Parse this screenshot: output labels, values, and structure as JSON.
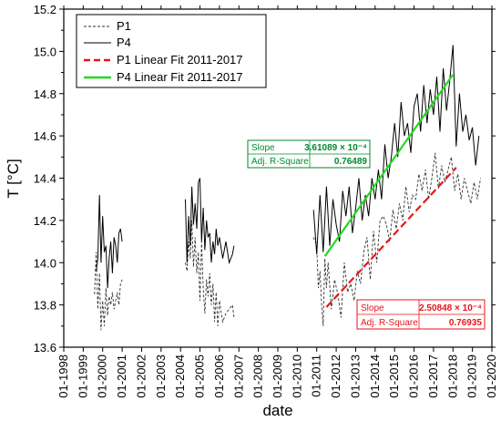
{
  "chart_data": {
    "type": "line",
    "xlabel": "date",
    "ylabel": "T [°C]",
    "xlim": [
      "1998-01",
      "2020-01"
    ],
    "ylim": [
      13.6,
      15.2
    ],
    "x_ticks": [
      "01-1998",
      "01-1999",
      "01-2000",
      "01-2001",
      "01-2002",
      "01-2003",
      "01-2004",
      "01-2005",
      "01-2006",
      "01-2007",
      "01-2008",
      "01-2009",
      "01-2010",
      "01-2011",
      "01-2012",
      "01-2013",
      "01-2014",
      "01-2015",
      "01-2016",
      "01-2017",
      "01-2018",
      "01-2019",
      "01-2020"
    ],
    "y_ticks": [
      "13.6",
      "13.8",
      "14.0",
      "14.2",
      "14.4",
      "14.6",
      "14.8",
      "15.0",
      "15.2"
    ],
    "legend_position": "top-left",
    "series": [
      {
        "name": "P1",
        "style": "dashed",
        "color": "#333333",
        "segments": [
          [
            [
              "1999-08",
              13.85
            ],
            [
              "1999-09",
              14.05
            ],
            [
              "1999-10",
              13.78
            ],
            [
              "1999-11",
              13.95
            ],
            [
              "1999-12",
              13.68
            ],
            [
              "2000-01",
              13.82
            ],
            [
              "2000-02",
              13.7
            ],
            [
              "2000-03",
              13.88
            ],
            [
              "2000-04",
              13.75
            ],
            [
              "2000-05",
              13.84
            ],
            [
              "2000-06",
              13.8
            ],
            [
              "2000-07",
              13.86
            ],
            [
              "2000-08",
              13.78
            ],
            [
              "2000-09",
              13.82
            ],
            [
              "2000-10",
              13.86
            ],
            [
              "2000-11",
              13.8
            ],
            [
              "2000-12",
              13.9
            ],
            [
              "2001-01",
              13.92
            ]
          ],
          [
            [
              "2004-04",
              14.0
            ],
            [
              "2004-05",
              13.96
            ],
            [
              "2004-06",
              14.1
            ],
            [
              "2004-07",
              14.02
            ],
            [
              "2004-08",
              14.2
            ],
            [
              "2004-09",
              13.98
            ],
            [
              "2004-10",
              14.12
            ],
            [
              "2004-11",
              13.95
            ],
            [
              "2004-12",
              14.05
            ],
            [
              "2005-01",
              13.82
            ],
            [
              "2005-02",
              14.1
            ],
            [
              "2005-03",
              13.88
            ],
            [
              "2005-04",
              13.76
            ],
            [
              "2005-05",
              13.92
            ],
            [
              "2005-06",
              13.84
            ],
            [
              "2005-07",
              13.95
            ],
            [
              "2005-08",
              13.8
            ],
            [
              "2005-09",
              13.9
            ],
            [
              "2005-10",
              13.72
            ],
            [
              "2005-11",
              13.86
            ],
            [
              "2005-12",
              13.7
            ],
            [
              "2006-01",
              13.82
            ],
            [
              "2006-03",
              13.72
            ],
            [
              "2006-05",
              13.76
            ],
            [
              "2006-07",
              13.78
            ],
            [
              "2006-09",
              13.8
            ],
            [
              "2006-10",
              13.74
            ]
          ],
          [
            [
              "2010-11",
              14.12
            ],
            [
              "2011-01",
              14.08
            ],
            [
              "2011-02",
              13.88
            ],
            [
              "2011-03",
              13.96
            ],
            [
              "2011-04",
              13.8
            ],
            [
              "2011-05",
              13.7
            ],
            [
              "2011-06",
              14.02
            ],
            [
              "2011-07",
              13.88
            ],
            [
              "2011-08",
              14.0
            ],
            [
              "2011-10",
              13.78
            ],
            [
              "2011-12",
              13.92
            ],
            [
              "2012-02",
              13.85
            ],
            [
              "2012-04",
              13.74
            ],
            [
              "2012-06",
              14.0
            ],
            [
              "2012-08",
              13.86
            ],
            [
              "2012-10",
              13.9
            ],
            [
              "2012-12",
              13.82
            ],
            [
              "2013-02",
              13.96
            ],
            [
              "2013-04",
              13.9
            ],
            [
              "2013-06",
              14.05
            ],
            [
              "2013-08",
              14.12
            ],
            [
              "2013-10",
              13.92
            ],
            [
              "2013-12",
              14.15
            ],
            [
              "2014-02",
              14.0
            ],
            [
              "2014-04",
              14.2
            ],
            [
              "2014-06",
              14.22
            ],
            [
              "2014-08",
              14.18
            ],
            [
              "2014-10",
              14.1
            ],
            [
              "2014-12",
              14.25
            ],
            [
              "2015-02",
              14.16
            ],
            [
              "2015-04",
              14.28
            ],
            [
              "2015-06",
              14.2
            ],
            [
              "2015-08",
              14.36
            ],
            [
              "2015-10",
              14.24
            ],
            [
              "2015-12",
              14.32
            ],
            [
              "2016-02",
              14.3
            ],
            [
              "2016-04",
              14.42
            ],
            [
              "2016-06",
              14.34
            ],
            [
              "2016-08",
              14.44
            ],
            [
              "2016-10",
              14.3
            ],
            [
              "2016-12",
              14.4
            ],
            [
              "2017-02",
              14.52
            ],
            [
              "2017-04",
              14.35
            ],
            [
              "2017-06",
              14.46
            ],
            [
              "2017-08",
              14.38
            ],
            [
              "2017-10",
              14.44
            ],
            [
              "2017-12",
              14.5
            ],
            [
              "2018-02",
              14.34
            ],
            [
              "2018-04",
              14.42
            ],
            [
              "2018-06",
              14.3
            ],
            [
              "2018-08",
              14.4
            ],
            [
              "2018-10",
              14.34
            ],
            [
              "2018-12",
              14.28
            ],
            [
              "2019-02",
              14.38
            ],
            [
              "2019-04",
              14.3
            ],
            [
              "2019-06",
              14.4
            ]
          ]
        ]
      },
      {
        "name": "P4",
        "style": "solid",
        "color": "#000000",
        "segments": [
          [
            [
              "1999-09",
              13.96
            ],
            [
              "1999-10",
              14.02
            ],
            [
              "1999-11",
              14.32
            ],
            [
              "1999-12",
              14.0
            ],
            [
              "2000-01",
              14.22
            ],
            [
              "2000-02",
              14.05
            ],
            [
              "2000-03",
              14.08
            ],
            [
              "2000-04",
              13.88
            ],
            [
              "2000-05",
              14.02
            ],
            [
              "2000-06",
              14.1
            ],
            [
              "2000-07",
              13.95
            ],
            [
              "2000-08",
              14.12
            ],
            [
              "2000-09",
              14.08
            ],
            [
              "2000-10",
              14.0
            ],
            [
              "2000-11",
              14.14
            ],
            [
              "2000-12",
              14.16
            ],
            [
              "2001-01",
              14.1
            ]
          ],
          [
            [
              "2004-04",
              14.3
            ],
            [
              "2004-05",
              14.0
            ],
            [
              "2004-06",
              14.22
            ],
            [
              "2004-07",
              14.08
            ],
            [
              "2004-08",
              14.36
            ],
            [
              "2004-09",
              14.18
            ],
            [
              "2004-10",
              14.28
            ],
            [
              "2004-11",
              14.16
            ],
            [
              "2004-12",
              14.38
            ],
            [
              "2005-01",
              14.4
            ],
            [
              "2005-02",
              14.1
            ],
            [
              "2005-03",
              14.26
            ],
            [
              "2005-04",
              14.06
            ],
            [
              "2005-05",
              14.2
            ],
            [
              "2005-06",
              14.12
            ],
            [
              "2005-07",
              14.14
            ],
            [
              "2005-08",
              14.0
            ],
            [
              "2005-09",
              14.1
            ],
            [
              "2005-10",
              14.04
            ],
            [
              "2005-11",
              14.16
            ],
            [
              "2005-12",
              14.08
            ],
            [
              "2006-01",
              14.12
            ],
            [
              "2006-03",
              14.02
            ],
            [
              "2006-05",
              14.1
            ],
            [
              "2006-07",
              14.0
            ],
            [
              "2006-09",
              14.04
            ],
            [
              "2006-10",
              14.08
            ]
          ],
          [
            [
              "2010-11",
              14.25
            ],
            [
              "2011-01",
              14.04
            ],
            [
              "2011-03",
              14.32
            ],
            [
              "2011-05",
              14.05
            ],
            [
              "2011-07",
              14.36
            ],
            [
              "2011-09",
              14.08
            ],
            [
              "2011-11",
              14.3
            ],
            [
              "2012-01",
              14.18
            ],
            [
              "2012-03",
              14.1
            ],
            [
              "2012-05",
              14.34
            ],
            [
              "2012-07",
              14.22
            ],
            [
              "2012-09",
              14.36
            ],
            [
              "2012-11",
              14.14
            ],
            [
              "2013-01",
              14.26
            ],
            [
              "2013-03",
              14.4
            ],
            [
              "2013-05",
              14.2
            ],
            [
              "2013-07",
              14.32
            ],
            [
              "2013-09",
              14.22
            ],
            [
              "2013-11",
              14.4
            ],
            [
              "2014-01",
              14.3
            ],
            [
              "2014-03",
              14.44
            ],
            [
              "2014-05",
              14.3
            ],
            [
              "2014-07",
              14.56
            ],
            [
              "2014-09",
              14.4
            ],
            [
              "2014-11",
              14.5
            ],
            [
              "2015-01",
              14.66
            ],
            [
              "2015-03",
              14.5
            ],
            [
              "2015-05",
              14.76
            ],
            [
              "2015-07",
              14.6
            ],
            [
              "2015-09",
              14.66
            ],
            [
              "2015-11",
              14.52
            ],
            [
              "2016-01",
              14.74
            ],
            [
              "2016-03",
              14.8
            ],
            [
              "2016-05",
              14.62
            ],
            [
              "2016-07",
              14.84
            ],
            [
              "2016-09",
              14.66
            ],
            [
              "2016-11",
              14.82
            ],
            [
              "2017-01",
              14.7
            ],
            [
              "2017-03",
              14.88
            ],
            [
              "2017-05",
              14.62
            ],
            [
              "2017-07",
              14.92
            ],
            [
              "2017-09",
              14.72
            ],
            [
              "2017-11",
              14.86
            ],
            [
              "2018-01",
              15.03
            ],
            [
              "2018-03",
              14.55
            ],
            [
              "2018-05",
              14.8
            ],
            [
              "2018-07",
              14.62
            ],
            [
              "2018-09",
              14.7
            ],
            [
              "2018-11",
              14.58
            ],
            [
              "2019-01",
              14.64
            ],
            [
              "2019-03",
              14.46
            ],
            [
              "2019-05",
              14.6
            ]
          ]
        ]
      },
      {
        "name": "P1 Linear Fit 2011-2017",
        "style": "dashed-bold",
        "color": "#e8141b",
        "points": [
          [
            "2011-07",
            13.79
          ],
          [
            "2018-03",
            14.45
          ]
        ]
      },
      {
        "name": "P4 Linear Fit 2011-2017",
        "style": "solid-bold",
        "color": "#1fdc1f",
        "points": [
          [
            "2011-06",
            14.03
          ],
          [
            "2018-01",
            14.89
          ]
        ]
      }
    ],
    "annotations": [
      {
        "color": "#008a2e",
        "rows": [
          [
            "Slope",
            "3.61089 × 10⁻⁴"
          ],
          [
            "Adj. R-Square",
            "0.76489"
          ]
        ]
      },
      {
        "color": "#e8141b",
        "rows": [
          [
            "Slope",
            "2.50848 × 10⁻⁴"
          ],
          [
            "Adj. R-Square",
            "0.76935"
          ]
        ]
      }
    ]
  }
}
